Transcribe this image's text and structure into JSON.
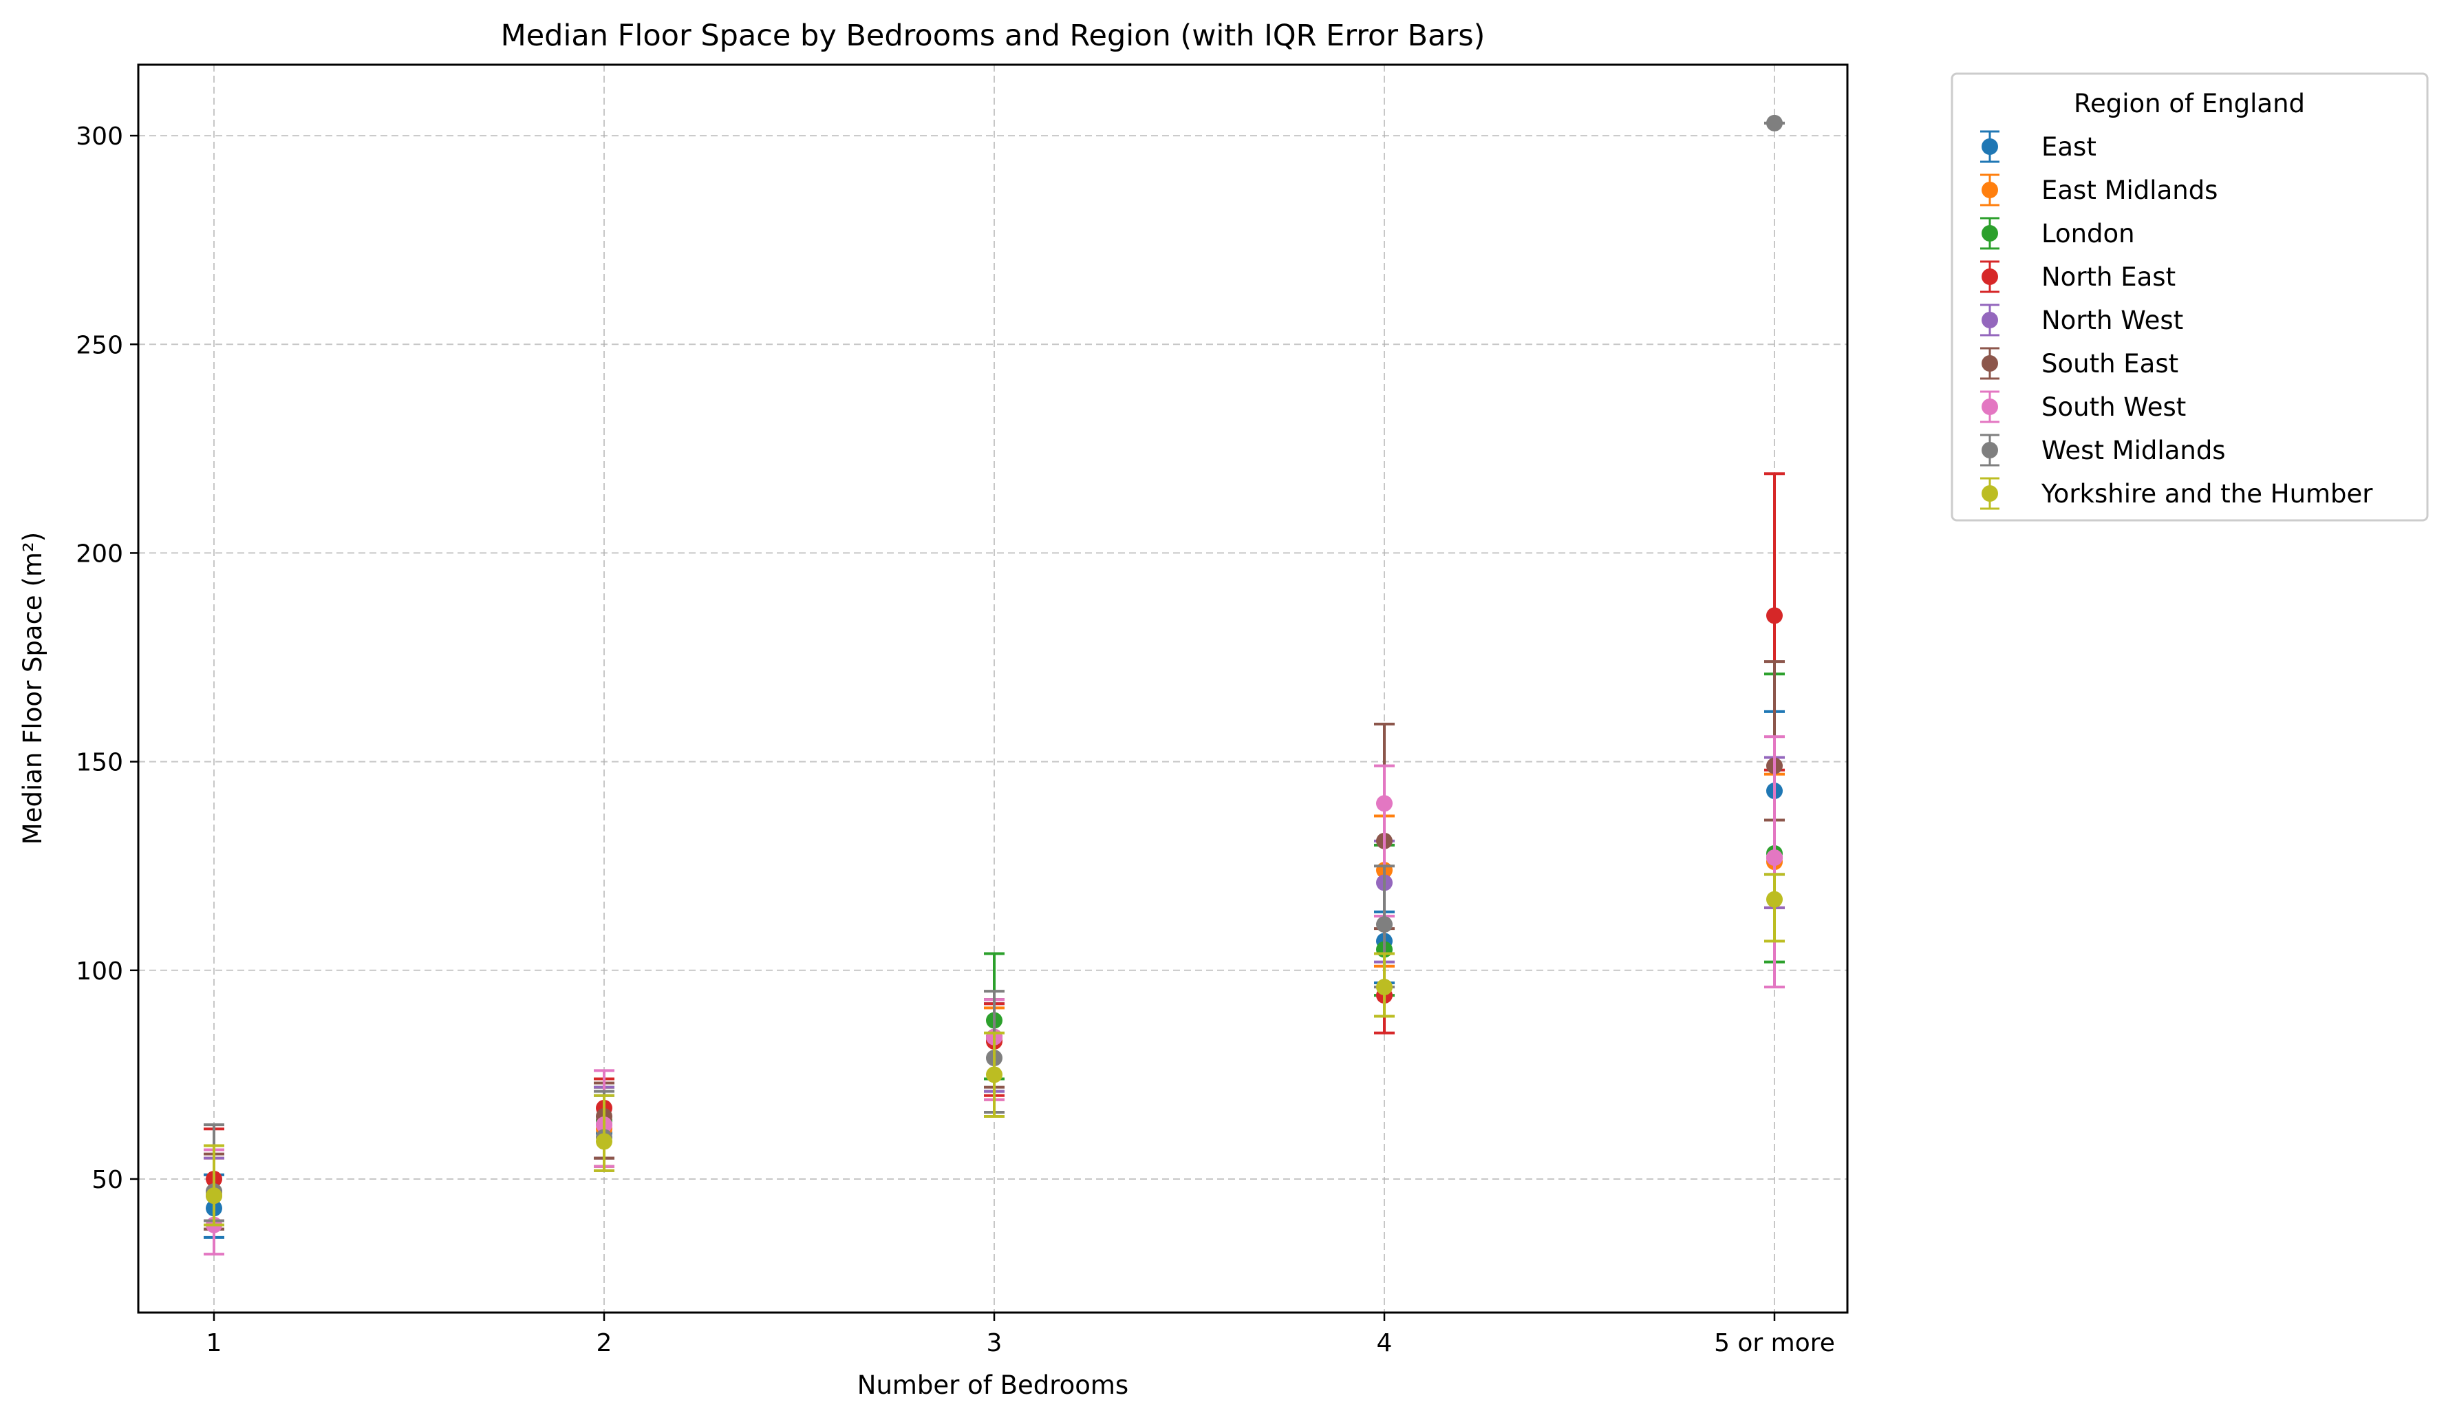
{
  "chart_data": {
    "type": "scatter",
    "title": "Median Floor Space by Bedrooms and Region (with IQR Error Bars)",
    "xlabel": "Number of Bedrooms",
    "ylabel": "Median Floor Space (m²)",
    "categories": [
      "1",
      "2",
      "3",
      "4",
      "5 or more"
    ],
    "ylim": [
      18,
      317
    ],
    "yticks": [
      50,
      100,
      150,
      200,
      250,
      300
    ],
    "grid": true,
    "legend": {
      "title": "Region of England",
      "placement": "outside-top-right"
    },
    "series": [
      {
        "name": "East",
        "color": "#1f77b4",
        "values": [
          43,
          61,
          84,
          107,
          143
        ],
        "low": [
          36,
          53,
          71,
          97,
          123
        ],
        "high": [
          51,
          70,
          92,
          114,
          162
        ]
      },
      {
        "name": "East Midlands",
        "color": "#ff7f0e",
        "values": [
          46,
          62,
          83,
          124,
          126
        ],
        "low": [
          38,
          53,
          69,
          101,
          115
        ],
        "high": [
          55,
          72,
          91,
          137,
          147
        ]
      },
      {
        "name": "London",
        "color": "#2ca02c",
        "values": [
          47,
          64,
          88,
          105,
          128
        ],
        "low": [
          38,
          55,
          74,
          94,
          102
        ],
        "high": [
          57,
          72,
          104,
          130,
          171
        ]
      },
      {
        "name": "North East",
        "color": "#d62728",
        "values": [
          50,
          67,
          83,
          94,
          185
        ],
        "low": [
          40,
          55,
          70,
          85,
          148
        ],
        "high": [
          62,
          74,
          92,
          104,
          219
        ]
      },
      {
        "name": "North West",
        "color": "#9467bd",
        "values": [
          46,
          63,
          84,
          121,
          127
        ],
        "low": [
          38,
          55,
          71,
          102,
          115
        ],
        "high": [
          55,
          72,
          93,
          131,
          151
        ]
      },
      {
        "name": "South East",
        "color": "#8c564b",
        "values": [
          47,
          65,
          84,
          131,
          149
        ],
        "low": [
          38,
          55,
          72,
          110,
          136
        ],
        "high": [
          56,
          73,
          93,
          159,
          174
        ]
      },
      {
        "name": "South West",
        "color": "#e377c2",
        "values": [
          39,
          63,
          84,
          140,
          127
        ],
        "low": [
          32,
          53,
          69,
          113,
          96
        ],
        "high": [
          57,
          76,
          93,
          149,
          156
        ]
      },
      {
        "name": "West Midlands",
        "color": "#7f7f7f",
        "values": [
          47,
          60,
          79,
          111,
          303
        ],
        "low": [
          40,
          52,
          66,
          96,
          303
        ],
        "high": [
          63,
          71,
          95,
          125,
          303
        ]
      },
      {
        "name": "Yorkshire and the Humber",
        "color": "#bcbd22",
        "values": [
          46,
          59,
          75,
          96,
          117
        ],
        "low": [
          39,
          52,
          65,
          89,
          107
        ],
        "high": [
          58,
          70,
          85,
          104,
          123
        ]
      }
    ]
  }
}
